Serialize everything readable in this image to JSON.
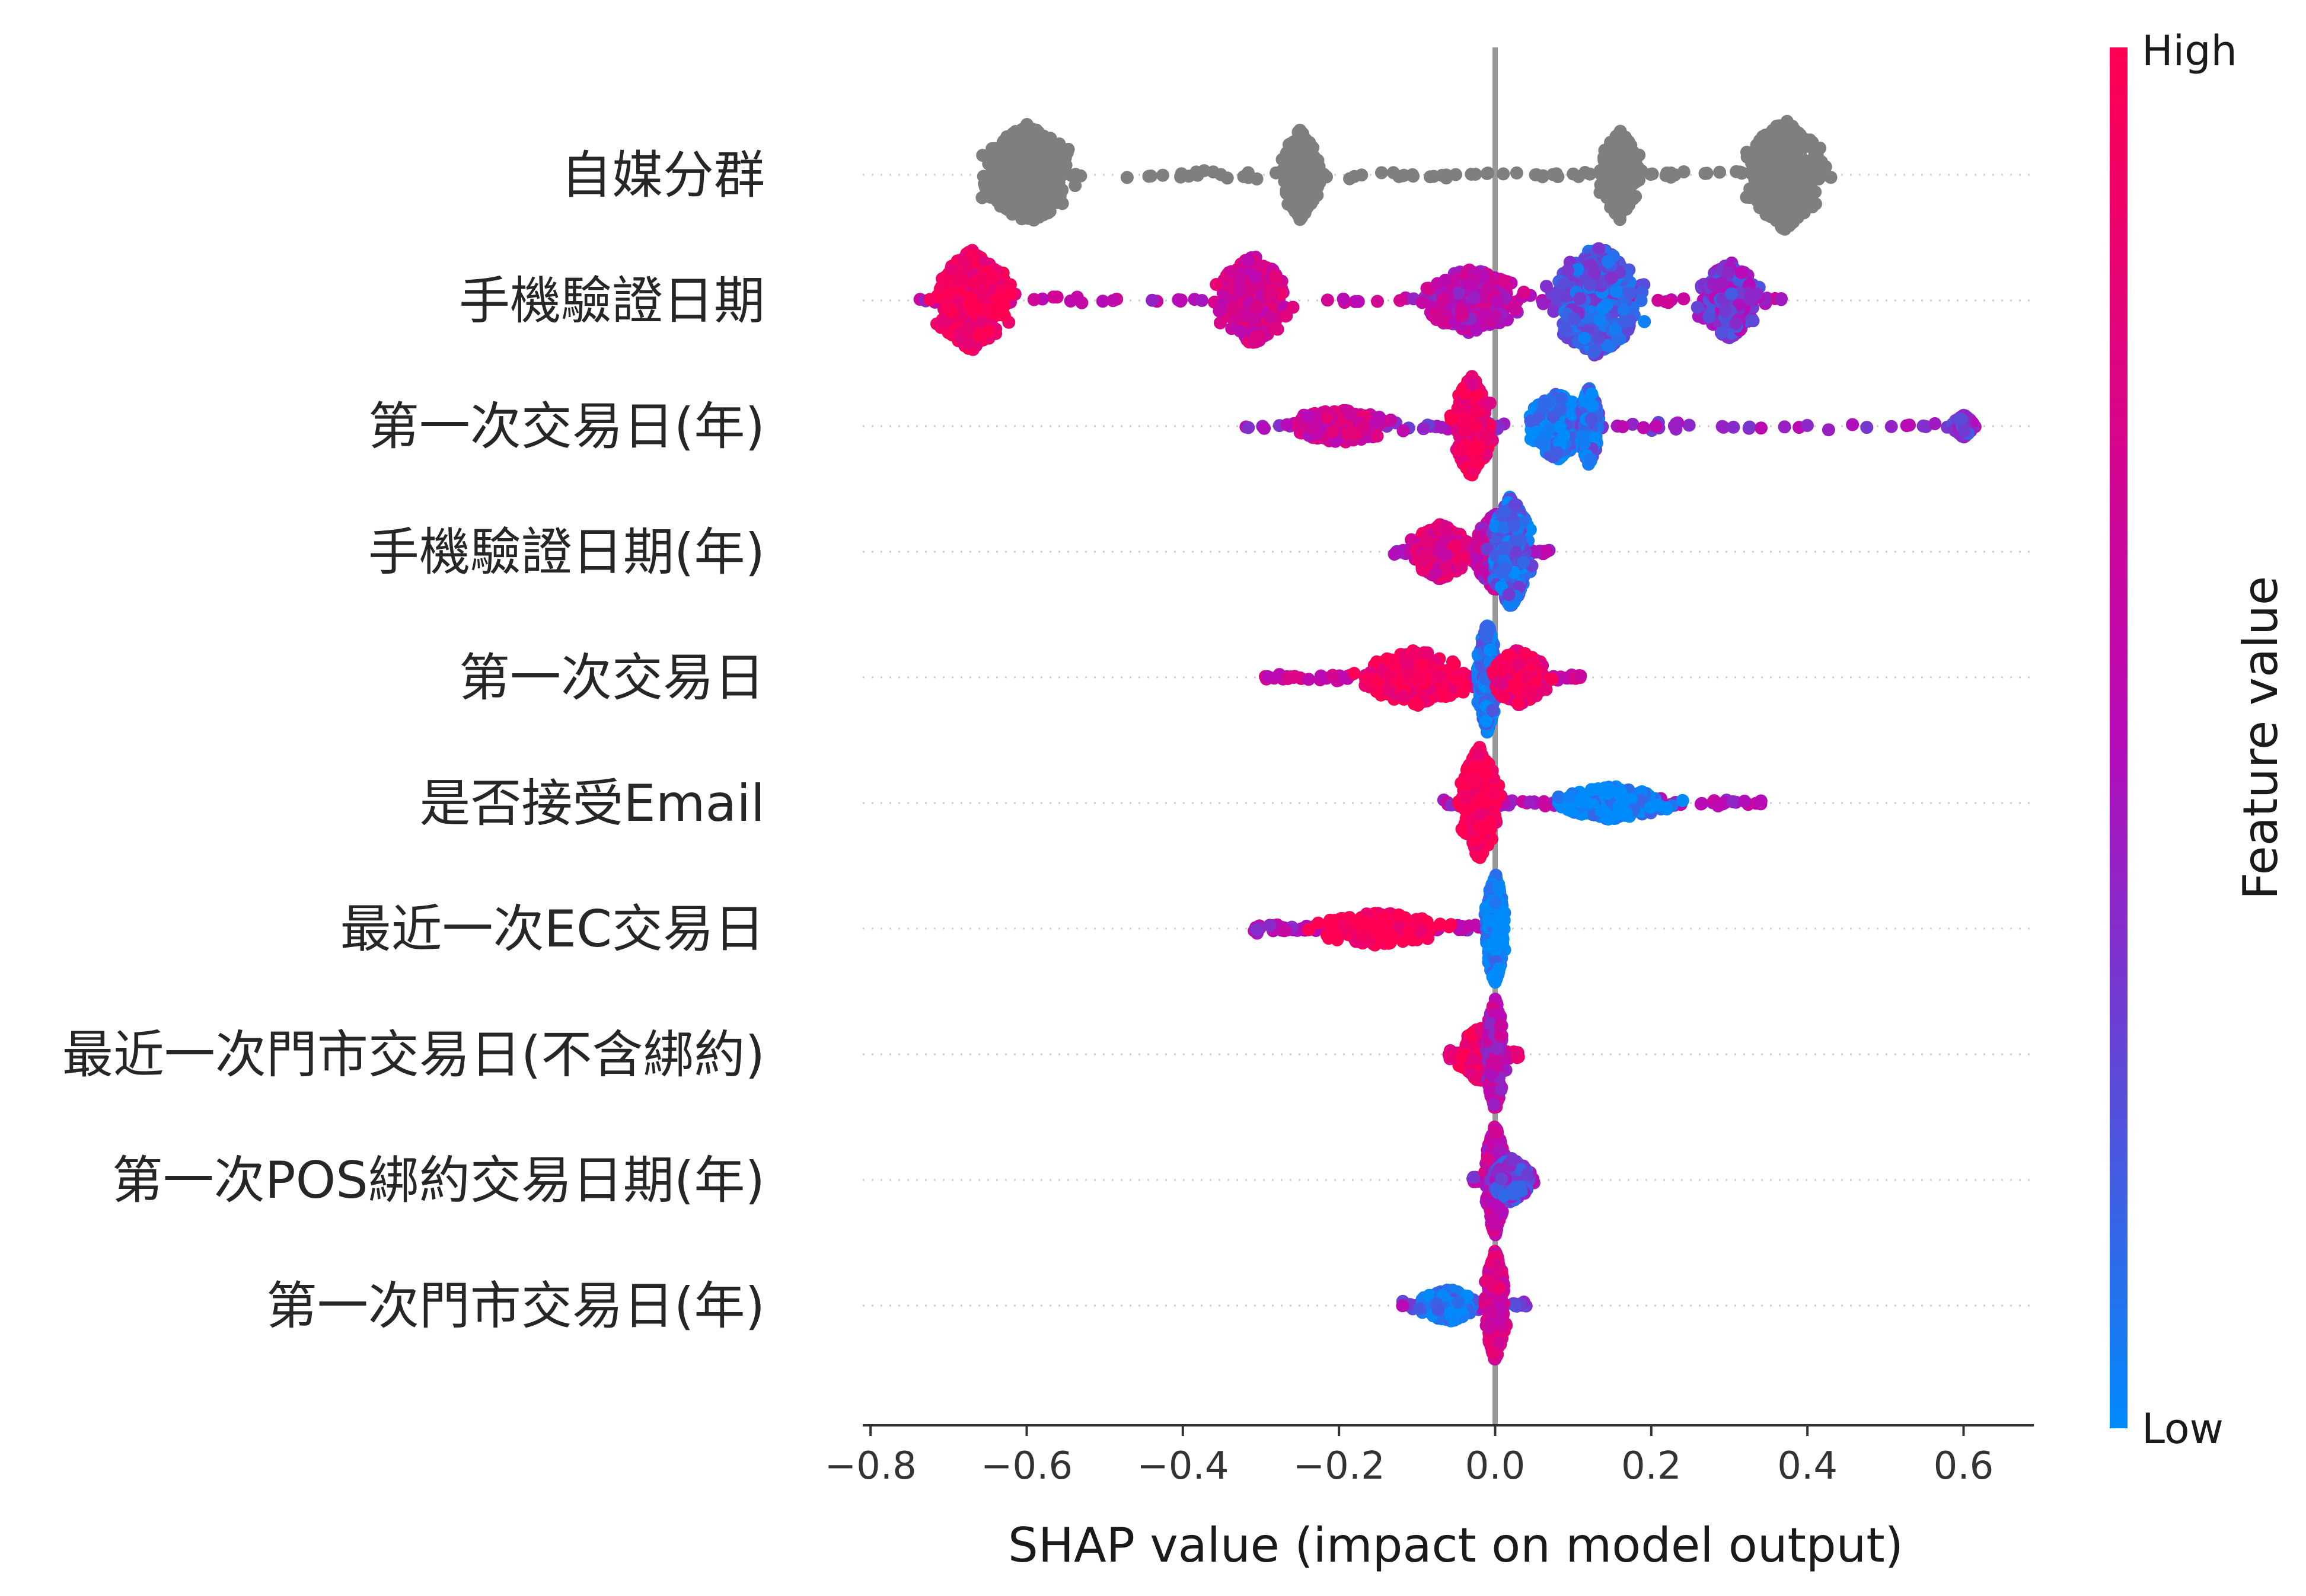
{
  "chart_data": {
    "type": "scatter",
    "subtype": "shap-beeswarm",
    "xlabel": "SHAP value (impact on model output)",
    "xlim": [
      -0.81,
      0.69
    ],
    "xticks": [
      -0.8,
      -0.6,
      -0.4,
      -0.2,
      0.0,
      0.2,
      0.4,
      0.6
    ],
    "xtick_labels": [
      "−0.8",
      "−0.6",
      "−0.4",
      "−0.2",
      "0.0",
      "0.2",
      "0.4",
      "0.6"
    ],
    "features": [
      {
        "label": "自媒分群",
        "x_range": [
          -0.66,
          0.44
        ],
        "feature_color": "gray",
        "clusters": [
          {
            "x": -0.6,
            "spread": 0.05,
            "height": 0.9,
            "value": null
          },
          {
            "x": -0.25,
            "spread": 0.02,
            "height": 0.8,
            "value": null
          },
          {
            "x": 0.16,
            "spread": 0.02,
            "height": 0.8,
            "value": null
          },
          {
            "x": 0.37,
            "spread": 0.04,
            "height": 1.0,
            "value": null
          }
        ]
      },
      {
        "label": "手機驗證日期",
        "x_range": [
          -0.74,
          0.37
        ],
        "clusters": [
          {
            "x": -0.67,
            "spread": 0.04,
            "height": 0.9,
            "value": 0.95
          },
          {
            "x": -0.31,
            "spread": 0.04,
            "height": 0.8,
            "value": 0.7
          },
          {
            "x": -0.03,
            "spread": 0.05,
            "height": 0.6,
            "value": 0.55
          },
          {
            "x": 0.13,
            "spread": 0.05,
            "height": 1.0,
            "value": 0.2
          },
          {
            "x": 0.3,
            "spread": 0.03,
            "height": 0.7,
            "value": 0.35
          }
        ]
      },
      {
        "label": "第一次交易日(年)",
        "x_range": [
          -0.32,
          0.63
        ],
        "clusters": [
          {
            "x": -0.2,
            "spread": 0.06,
            "height": 0.3,
            "value": 0.65
          },
          {
            "x": -0.03,
            "spread": 0.02,
            "height": 0.9,
            "value": 0.9
          },
          {
            "x": 0.08,
            "spread": 0.03,
            "height": 0.6,
            "value": 0.05
          },
          {
            "x": 0.12,
            "spread": 0.01,
            "height": 0.7,
            "value": 0.15
          },
          {
            "x": 0.6,
            "spread": 0.01,
            "height": 0.2,
            "value": 0.35
          }
        ]
      },
      {
        "label": "手機驗證日期(年)",
        "x_range": [
          -0.13,
          0.07
        ],
        "clusters": [
          {
            "x": -0.07,
            "spread": 0.03,
            "height": 0.5,
            "value": 0.75
          },
          {
            "x": 0.0,
            "spread": 0.02,
            "height": 0.7,
            "value": 0.55
          },
          {
            "x": 0.02,
            "spread": 0.02,
            "height": 1.0,
            "value": 0.15
          }
        ]
      },
      {
        "label": "第一次交易日",
        "x_range": [
          -0.3,
          0.11
        ],
        "clusters": [
          {
            "x": -0.1,
            "spread": 0.06,
            "height": 0.5,
            "value": 0.95
          },
          {
            "x": -0.01,
            "spread": 0.01,
            "height": 1.0,
            "value": 0.1
          },
          {
            "x": 0.03,
            "spread": 0.03,
            "height": 0.5,
            "value": 0.9
          }
        ]
      },
      {
        "label": "是否接受Email",
        "x_range": [
          -0.07,
          0.35
        ],
        "clusters": [
          {
            "x": -0.02,
            "spread": 0.02,
            "height": 1.0,
            "value": 1.0
          },
          {
            "x": 0.15,
            "spread": 0.06,
            "height": 0.3,
            "value": 0.0
          }
        ]
      },
      {
        "label": "最近一次EC交易日",
        "x_range": [
          -0.31,
          0.02
        ],
        "clusters": [
          {
            "x": -0.15,
            "spread": 0.07,
            "height": 0.3,
            "value": 1.0
          },
          {
            "x": 0.0,
            "spread": 0.01,
            "height": 1.0,
            "value": 0.0
          }
        ]
      },
      {
        "label": "最近一次門市交易日(不含綁約)",
        "x_range": [
          -0.06,
          0.03
        ],
        "clusters": [
          {
            "x": -0.02,
            "spread": 0.02,
            "height": 0.5,
            "value": 0.95
          },
          {
            "x": 0.0,
            "spread": 0.01,
            "height": 1.0,
            "value": 0.55
          }
        ]
      },
      {
        "label": "第一次POS綁約交易日期(年)",
        "x_range": [
          -0.03,
          0.05
        ],
        "clusters": [
          {
            "x": 0.0,
            "spread": 0.01,
            "height": 1.0,
            "value": 0.6
          },
          {
            "x": 0.02,
            "spread": 0.02,
            "height": 0.4,
            "value": 0.3
          }
        ]
      },
      {
        "label": "第一次門市交易日(年)",
        "x_range": [
          -0.12,
          0.04
        ],
        "clusters": [
          {
            "x": -0.06,
            "spread": 0.03,
            "height": 0.3,
            "value": 0.05
          },
          {
            "x": 0.0,
            "spread": 0.01,
            "height": 1.0,
            "value": 0.7
          }
        ]
      }
    ],
    "colorbar": {
      "label": "Feature value",
      "high_label": "High",
      "low_label": "Low",
      "high_color": "#ff0052",
      "mid_color": "#b70ab8",
      "low_color": "#008bfb"
    },
    "feature_gray": "#7f7f7f",
    "zero_line_color": "#999999"
  }
}
